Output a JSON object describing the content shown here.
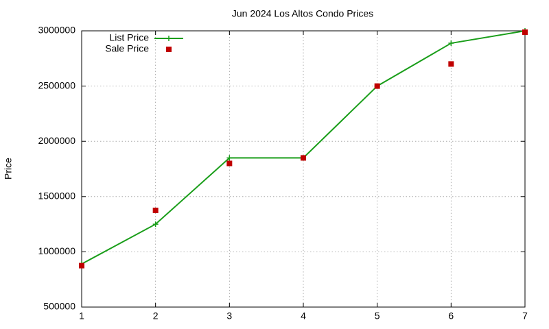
{
  "chart_data": {
    "type": "line",
    "title": "Jun 2024 Los Altos Condo Prices",
    "y_label": "Price",
    "x": [
      1,
      2,
      3,
      4,
      5,
      6,
      7
    ],
    "series": [
      {
        "name": "List Price",
        "color": "#1a9e1a",
        "marker": "plus",
        "line": true,
        "values": [
          890000,
          1250000,
          1850000,
          1850000,
          2500000,
          2888000,
          3000000
        ]
      },
      {
        "name": "Sale Price",
        "color": "#c00000",
        "marker": "square",
        "line": false,
        "values": [
          875000,
          1375000,
          1800000,
          1850000,
          2500000,
          2700000,
          2988000
        ]
      }
    ],
    "xlim": [
      1,
      7
    ],
    "xticks": [
      1,
      2,
      3,
      4,
      5,
      6,
      7
    ],
    "ylim": [
      500000,
      3000000
    ],
    "yticks": [
      500000,
      1000000,
      1500000,
      2000000,
      2500000,
      3000000
    ],
    "grid": true,
    "legend": "top-left"
  }
}
